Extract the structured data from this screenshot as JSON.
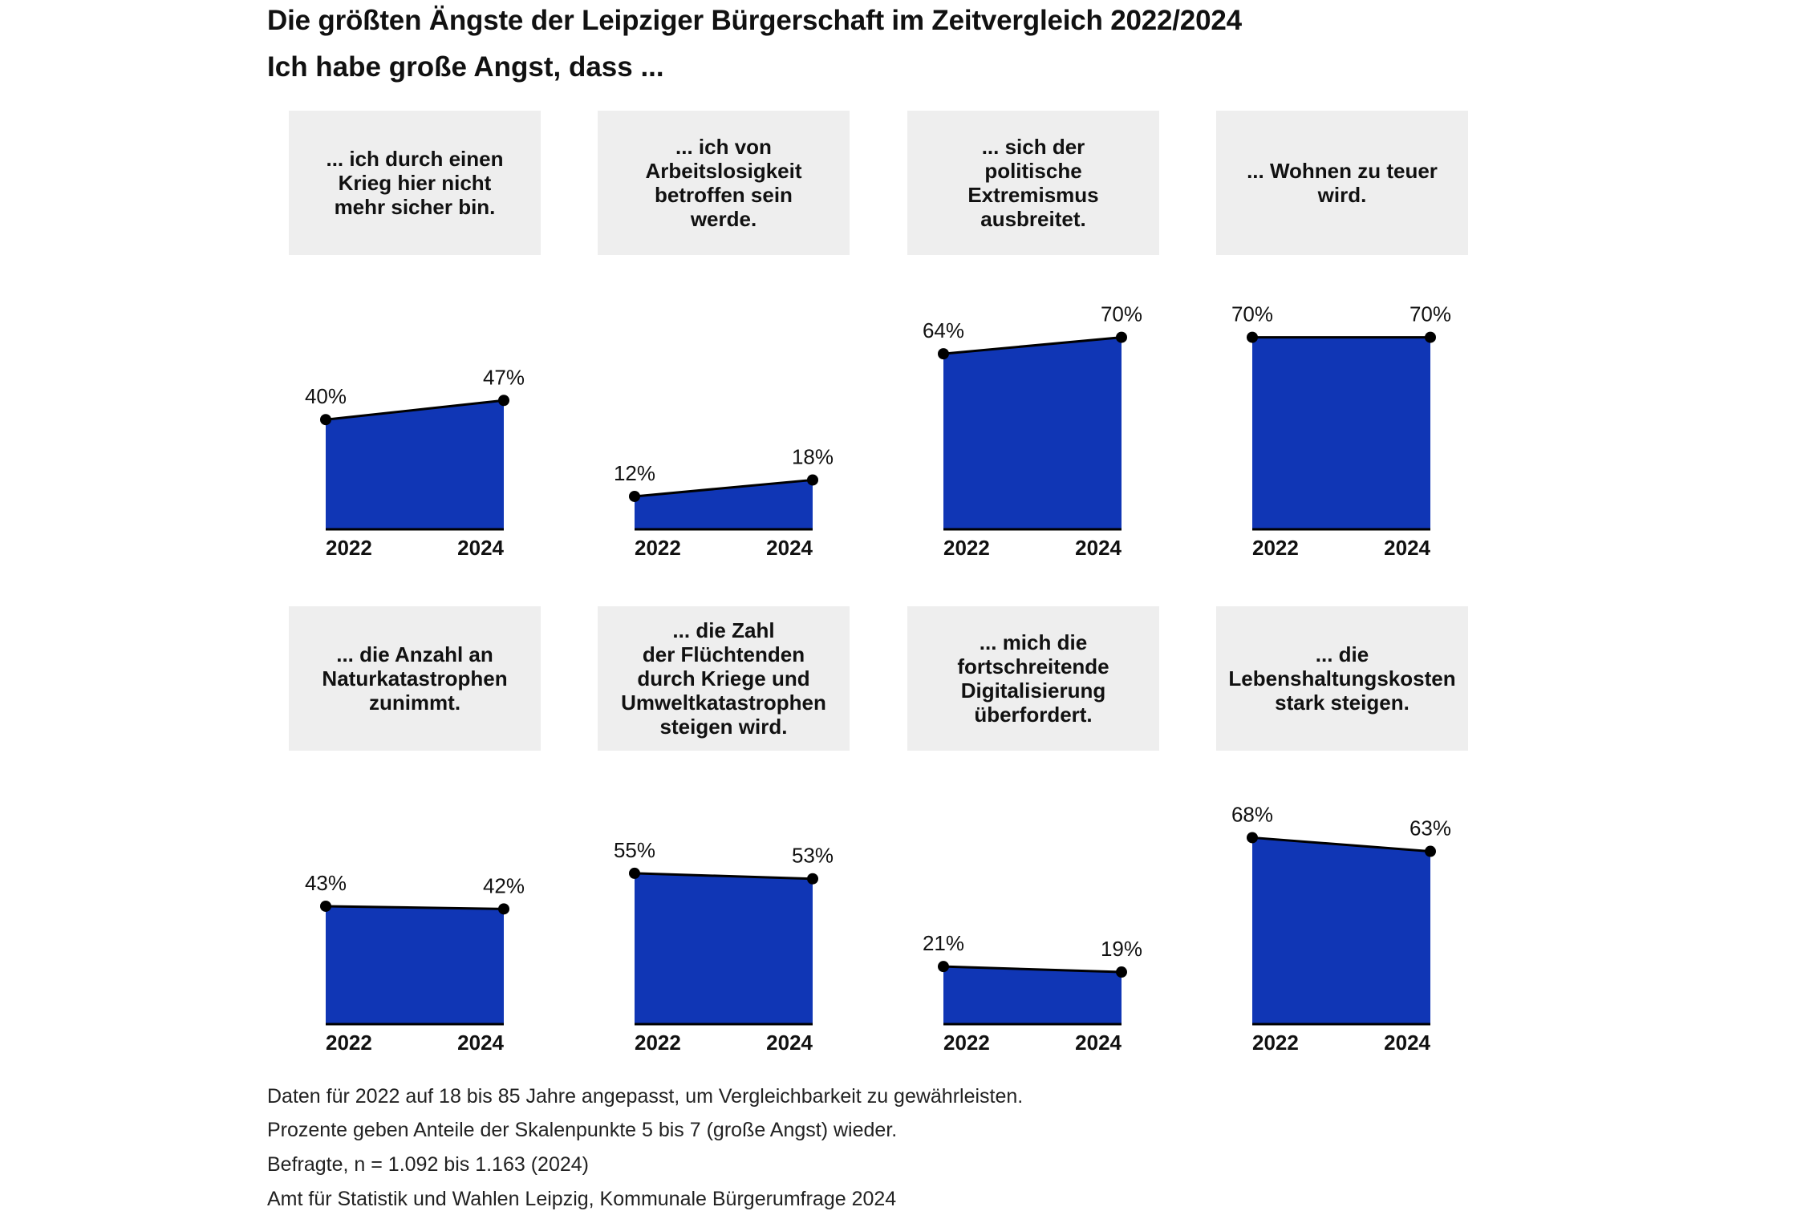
{
  "title": "Die größten Ängste der Leipziger Bürgerschaft im Zeitvergleich 2022/2024",
  "subtitle": "Ich habe große Angst, dass ...",
  "colors": {
    "area": "#1036b5",
    "line": "#000000",
    "box": "#eeeeee"
  },
  "footer": [
    "Daten für 2022 auf 18 bis 85 Jahre angepasst, um Vergleichbarkeit zu gewährleisten.",
    "Prozente geben Anteile der Skalenpunkte 5 bis 7 (große Angst) wieder.",
    "Befragte, n = 1.092 bis 1.163 (2024)",
    "Amt für Statistik und Wahlen Leipzig, Kommunale Bürgerumfrage 2024"
  ],
  "chart_data": [
    {
      "type": "area",
      "title": "... ich durch einen Krieg hier nicht mehr sicher bin.",
      "x": [
        "2022",
        "2024"
      ],
      "values": [
        40,
        47
      ],
      "labels": [
        "40%",
        "47%"
      ],
      "ylim": [
        0,
        100
      ]
    },
    {
      "type": "area",
      "title": "... ich von Arbeitslosigkeit betroffen sein werde.",
      "x": [
        "2022",
        "2024"
      ],
      "values": [
        12,
        18
      ],
      "labels": [
        "12%",
        "18%"
      ],
      "ylim": [
        0,
        100
      ]
    },
    {
      "type": "area",
      "title": "... sich der politische Extremismus ausbreitet.",
      "x": [
        "2022",
        "2024"
      ],
      "values": [
        64,
        70
      ],
      "labels": [
        "64%",
        "70%"
      ],
      "ylim": [
        0,
        100
      ]
    },
    {
      "type": "area",
      "title": "... Wohnen zu teuer wird.",
      "x": [
        "2022",
        "2024"
      ],
      "values": [
        70,
        70
      ],
      "labels": [
        "70%",
        "70%"
      ],
      "ylim": [
        0,
        100
      ]
    },
    {
      "type": "area",
      "title": "... die Anzahl an Naturkatastrophen zunimmt.",
      "x": [
        "2022",
        "2024"
      ],
      "values": [
        43,
        42
      ],
      "labels": [
        "43%",
        "42%"
      ],
      "ylim": [
        0,
        100
      ]
    },
    {
      "type": "area",
      "title": "... die Zahl der Flüchtenden durch Kriege und Umweltkatastrophen steigen wird.",
      "x": [
        "2022",
        "2024"
      ],
      "values": [
        55,
        53
      ],
      "labels": [
        "55%",
        "53%"
      ],
      "ylim": [
        0,
        100
      ]
    },
    {
      "type": "area",
      "title": "... mich die fortschreitende Digitalisierung überfordert.",
      "x": [
        "2022",
        "2024"
      ],
      "values": [
        21,
        19
      ],
      "labels": [
        "21%",
        "19%"
      ],
      "ylim": [
        0,
        100
      ]
    },
    {
      "type": "area",
      "title": "... die Lebenshaltungskosten stark steigen.",
      "x": [
        "2022",
        "2024"
      ],
      "values": [
        68,
        63
      ],
      "labels": [
        "68%",
        "63%"
      ],
      "ylim": [
        0,
        100
      ]
    }
  ],
  "box_text": [
    "... ich durch einen\nKrieg hier nicht\nmehr sicher bin.",
    "... ich von\nArbeitslosigkeit\nbetroffen sein\nwerde.",
    "... sich der\npolitische\nExtremismus\nausbreitet.",
    "... Wohnen zu teuer\nwird.",
    "... die Anzahl an\nNaturkatastrophen\nzunimmt.",
    "... die Zahl\nder Flüchtenden\ndurch Kriege und\nUmweltkatastrophen\nsteigen wird.",
    "... mich die\nfortschreitende\nDigitalisierung\nüberfordert.",
    "... die\nLebenshaltungskosten\nstark steigen."
  ]
}
